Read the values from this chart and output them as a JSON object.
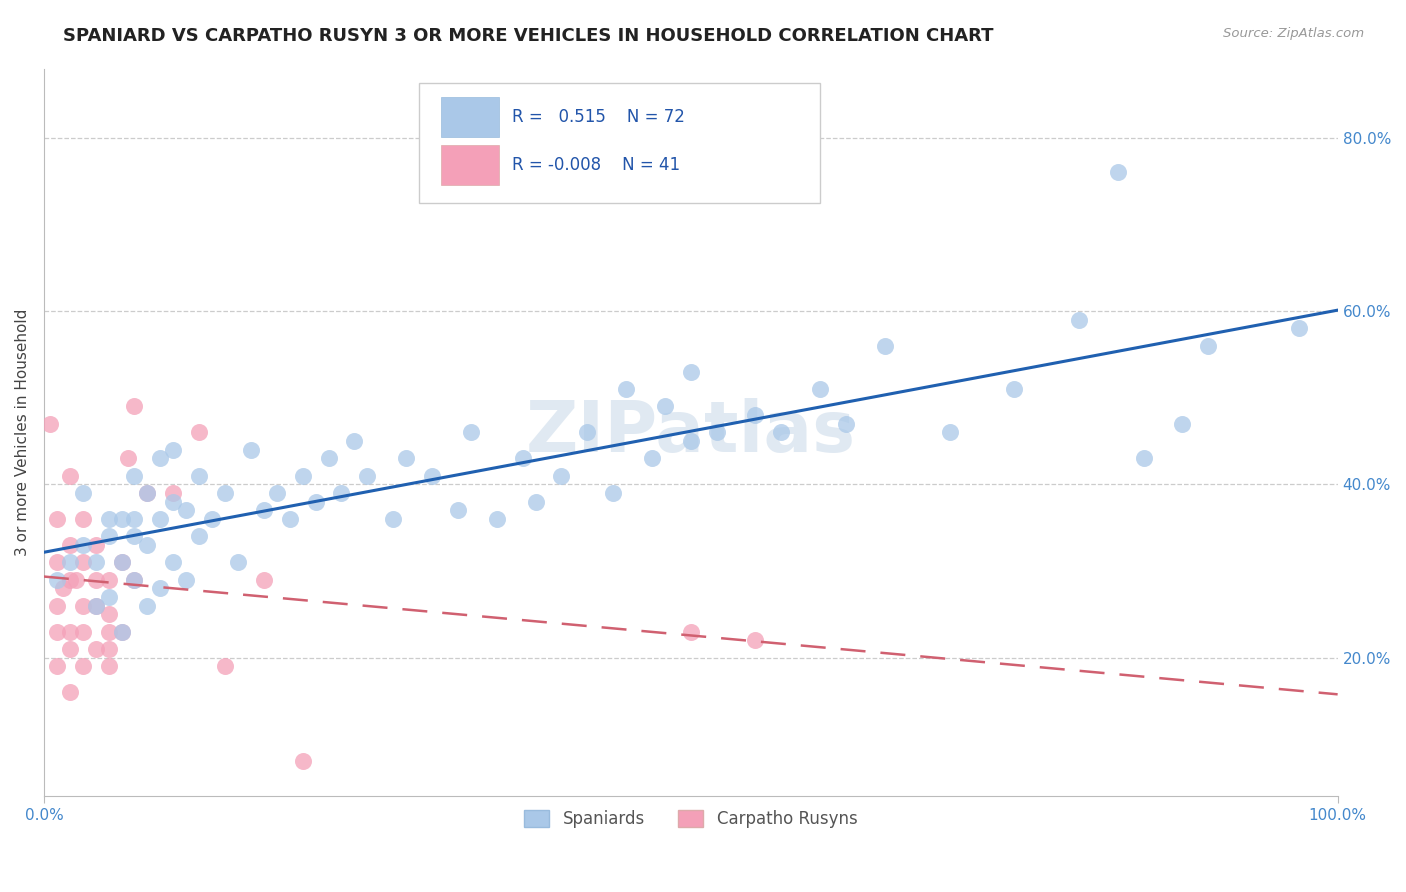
{
  "title": "SPANIARD VS CARPATHO RUSYN 3 OR MORE VEHICLES IN HOUSEHOLD CORRELATION CHART",
  "source": "Source: ZipAtlas.com",
  "ylabel": "3 or more Vehicles in Household",
  "xlim": [
    0.0,
    1.0
  ],
  "ylim": [
    0.04,
    0.88
  ],
  "yticks": [
    0.2,
    0.4,
    0.6,
    0.8
  ],
  "ytick_labels": [
    "20.0%",
    "40.0%",
    "60.0%",
    "80.0%"
  ],
  "blue_R": 0.515,
  "blue_N": 72,
  "pink_R": -0.008,
  "pink_N": 41,
  "blue_color": "#aac8e8",
  "pink_color": "#f4a0b8",
  "blue_line_color": "#2060b0",
  "pink_line_color": "#d06070",
  "legend_label_blue": "Spaniards",
  "legend_label_pink": "Carpatho Rusyns",
  "watermark": "ZIPatlas",
  "blue_x": [
    0.01,
    0.02,
    0.03,
    0.03,
    0.04,
    0.04,
    0.05,
    0.05,
    0.05,
    0.06,
    0.06,
    0.06,
    0.07,
    0.07,
    0.07,
    0.07,
    0.08,
    0.08,
    0.08,
    0.09,
    0.09,
    0.09,
    0.1,
    0.1,
    0.1,
    0.11,
    0.11,
    0.12,
    0.12,
    0.13,
    0.14,
    0.15,
    0.16,
    0.17,
    0.18,
    0.19,
    0.2,
    0.21,
    0.22,
    0.23,
    0.24,
    0.25,
    0.27,
    0.28,
    0.3,
    0.32,
    0.33,
    0.35,
    0.37,
    0.38,
    0.4,
    0.42,
    0.44,
    0.45,
    0.47,
    0.48,
    0.5,
    0.5,
    0.52,
    0.55,
    0.57,
    0.6,
    0.62,
    0.65,
    0.7,
    0.75,
    0.8,
    0.83,
    0.85,
    0.88,
    0.9,
    0.97
  ],
  "blue_y": [
    0.29,
    0.31,
    0.33,
    0.39,
    0.26,
    0.31,
    0.27,
    0.34,
    0.36,
    0.23,
    0.31,
    0.36,
    0.29,
    0.34,
    0.36,
    0.41,
    0.26,
    0.33,
    0.39,
    0.28,
    0.36,
    0.43,
    0.31,
    0.38,
    0.44,
    0.29,
    0.37,
    0.34,
    0.41,
    0.36,
    0.39,
    0.31,
    0.44,
    0.37,
    0.39,
    0.36,
    0.41,
    0.38,
    0.43,
    0.39,
    0.45,
    0.41,
    0.36,
    0.43,
    0.41,
    0.37,
    0.46,
    0.36,
    0.43,
    0.38,
    0.41,
    0.46,
    0.39,
    0.51,
    0.43,
    0.49,
    0.45,
    0.53,
    0.46,
    0.48,
    0.46,
    0.51,
    0.47,
    0.56,
    0.46,
    0.51,
    0.59,
    0.76,
    0.43,
    0.47,
    0.56,
    0.58
  ],
  "pink_x": [
    0.005,
    0.01,
    0.01,
    0.01,
    0.01,
    0.01,
    0.015,
    0.02,
    0.02,
    0.02,
    0.02,
    0.02,
    0.02,
    0.025,
    0.03,
    0.03,
    0.03,
    0.03,
    0.03,
    0.04,
    0.04,
    0.04,
    0.04,
    0.05,
    0.05,
    0.05,
    0.05,
    0.05,
    0.06,
    0.06,
    0.065,
    0.07,
    0.07,
    0.08,
    0.1,
    0.12,
    0.14,
    0.17,
    0.2,
    0.5,
    0.55
  ],
  "pink_y": [
    0.47,
    0.26,
    0.31,
    0.23,
    0.19,
    0.36,
    0.28,
    0.21,
    0.29,
    0.33,
    0.23,
    0.16,
    0.41,
    0.29,
    0.26,
    0.19,
    0.31,
    0.23,
    0.36,
    0.21,
    0.26,
    0.29,
    0.33,
    0.21,
    0.29,
    0.25,
    0.19,
    0.23,
    0.23,
    0.31,
    0.43,
    0.29,
    0.49,
    0.39,
    0.39,
    0.46,
    0.19,
    0.29,
    0.08,
    0.23,
    0.22
  ],
  "blue_line_start_x": 0.0,
  "blue_line_end_x": 1.0,
  "pink_line_start_x": 0.0,
  "pink_line_end_x": 1.0
}
